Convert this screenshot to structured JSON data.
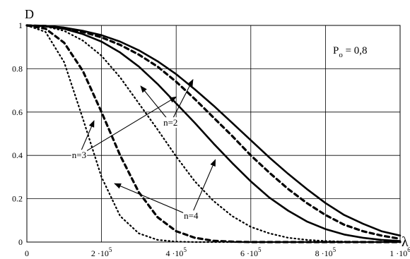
{
  "chart_data": {
    "type": "line",
    "title": "",
    "ylabel": "D",
    "xlabel": "λ",
    "xlim": [
      0,
      1000000
    ],
    "ylim": [
      0,
      1
    ],
    "grid": true,
    "y_ticks": [
      {
        "value": 0,
        "label": "0"
      },
      {
        "value": 0.2,
        "label": "0.2"
      },
      {
        "value": 0.4,
        "label": "0.4"
      },
      {
        "value": 0.6,
        "label": "0.6"
      },
      {
        "value": 0.8,
        "label": "0.8"
      },
      {
        "value": 1,
        "label": "1"
      }
    ],
    "x_ticks": [
      {
        "value": 0,
        "mant": "0",
        "exp": ""
      },
      {
        "value": 200000,
        "mant": "2 ·10",
        "exp": "5"
      },
      {
        "value": 400000,
        "mant": "4 ·10",
        "exp": "5"
      },
      {
        "value": 600000,
        "mant": "6 ·10",
        "exp": "5"
      },
      {
        "value": 800000,
        "mant": "8 ·10",
        "exp": "5"
      },
      {
        "value": 1000000,
        "mant": "1 ·10",
        "exp": "6"
      }
    ],
    "annotation": {
      "base": "P",
      "sub": "o",
      "rest": " = 0,8"
    },
    "series": [
      {
        "style": "solid",
        "x": [
          0,
          50000,
          100000,
          150000,
          200000,
          250000,
          300000,
          350000,
          400000,
          450000,
          500000,
          550000,
          600000,
          650000,
          700000,
          750000,
          800000,
          850000,
          900000,
          950000,
          1000000
        ],
        "values": [
          1.0,
          0.998,
          0.99,
          0.975,
          0.955,
          0.925,
          0.885,
          0.835,
          0.775,
          0.705,
          0.63,
          0.55,
          0.47,
          0.39,
          0.315,
          0.245,
          0.18,
          0.125,
          0.085,
          0.05,
          0.03
        ]
      },
      {
        "style": "dashed",
        "x": [
          0,
          50000,
          100000,
          150000,
          200000,
          250000,
          300000,
          350000,
          400000,
          450000,
          500000,
          550000,
          600000,
          650000,
          700000,
          750000,
          800000,
          850000,
          900000,
          950000,
          1000000
        ],
        "values": [
          1.0,
          0.997,
          0.988,
          0.97,
          0.945,
          0.91,
          0.865,
          0.81,
          0.74,
          0.66,
          0.575,
          0.49,
          0.4,
          0.32,
          0.245,
          0.18,
          0.125,
          0.08,
          0.05,
          0.03,
          0.015
        ]
      },
      {
        "style": "solid",
        "x": [
          0,
          50000,
          100000,
          150000,
          200000,
          250000,
          300000,
          350000,
          400000,
          450000,
          500000,
          550000,
          600000,
          650000,
          700000,
          750000,
          800000,
          850000,
          900000,
          950000,
          1000000
        ],
        "values": [
          1.0,
          0.996,
          0.984,
          0.96,
          0.925,
          0.875,
          0.81,
          0.73,
          0.64,
          0.55,
          0.455,
          0.365,
          0.28,
          0.205,
          0.145,
          0.095,
          0.06,
          0.035,
          0.02,
          0.01,
          0.005
        ]
      },
      {
        "style": "dotted",
        "x": [
          0,
          50000,
          100000,
          150000,
          200000,
          250000,
          300000,
          350000,
          400000,
          450000,
          500000,
          550000,
          600000,
          650000,
          700000,
          750000,
          800000,
          850000,
          900000,
          950000,
          1000000
        ],
        "values": [
          1.0,
          0.995,
          0.975,
          0.93,
          0.86,
          0.76,
          0.64,
          0.52,
          0.395,
          0.28,
          0.19,
          0.12,
          0.07,
          0.04,
          0.02,
          0.01,
          0.005,
          0.002,
          0.001,
          0.0,
          0.0
        ]
      },
      {
        "style": "dashed",
        "x": [
          0,
          50000,
          100000,
          150000,
          200000,
          250000,
          300000,
          350000,
          400000,
          450000,
          500000,
          550000,
          600000,
          650000,
          700000,
          750000,
          800000,
          850000,
          900000,
          950000,
          1000000
        ],
        "values": [
          1.0,
          0.985,
          0.92,
          0.79,
          0.6,
          0.4,
          0.23,
          0.115,
          0.05,
          0.02,
          0.006,
          0.002,
          0.0,
          0.0,
          0.0,
          0.0,
          0.0,
          0.0,
          0.0,
          0.0,
          0.0
        ]
      },
      {
        "style": "dotted",
        "x": [
          0,
          50000,
          100000,
          150000,
          200000,
          250000,
          300000,
          350000,
          400000,
          450000,
          500000,
          550000,
          600000,
          650000,
          700000,
          750000,
          800000,
          850000,
          900000,
          950000,
          1000000
        ],
        "values": [
          1.0,
          0.97,
          0.83,
          0.57,
          0.3,
          0.12,
          0.04,
          0.01,
          0.002,
          0.0,
          0.0,
          0.0,
          0.0,
          0.0,
          0.0,
          0.0,
          0.0,
          0.0,
          0.0,
          0.0,
          0.0
        ]
      }
    ],
    "labels": [
      {
        "text": "n=2",
        "anchor_value": [
          385000,
          0.55
        ],
        "targets": [
          [
            305000,
            0.72
          ],
          [
            445000,
            0.75
          ]
        ]
      },
      {
        "text": "n=3",
        "anchor_value": [
          140000,
          0.4
        ],
        "targets": [
          [
            180000,
            0.56
          ],
          [
            400000,
            0.67
          ]
        ]
      },
      {
        "text": "n=4",
        "anchor_value": [
          440000,
          0.12
        ],
        "targets": [
          [
            235000,
            0.27
          ],
          [
            505000,
            0.38
          ]
        ]
      }
    ]
  }
}
